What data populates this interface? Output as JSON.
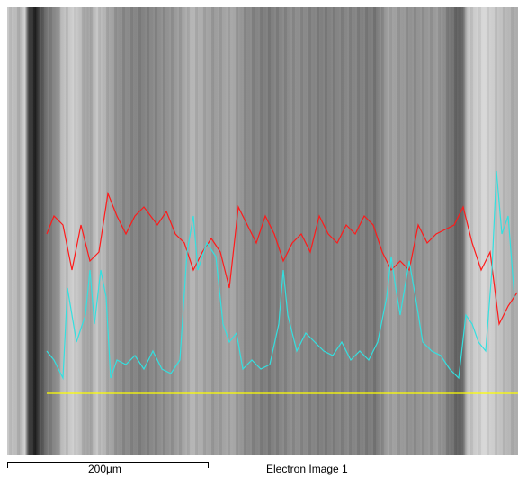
{
  "image": {
    "scale_bar_label": "200µm",
    "caption": "Electron Image 1"
  }
}
